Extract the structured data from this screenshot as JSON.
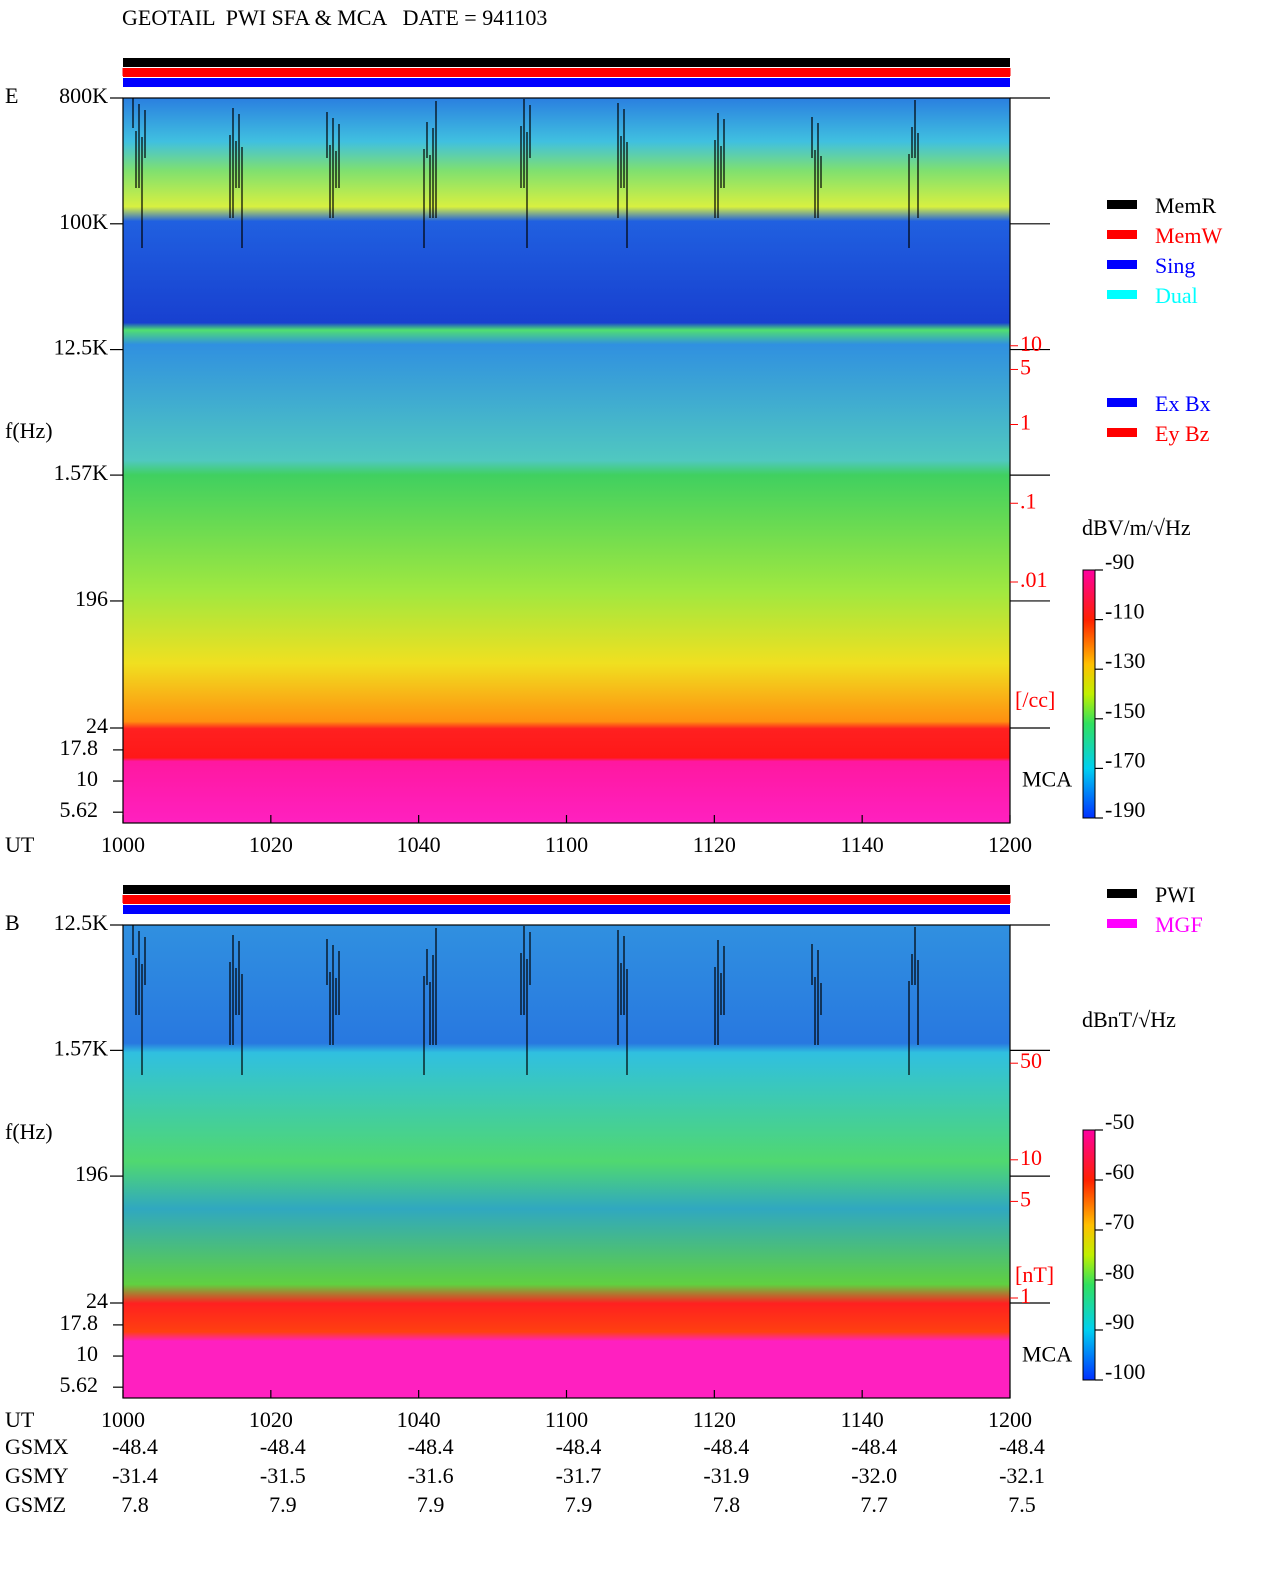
{
  "title": "GEOTAIL  PWI SFA & MCA   DATE = 941103",
  "chart_data": [
    {
      "type": "spectrogram",
      "panel_label": "E",
      "y_label": "f(Hz)",
      "x_label": "UT",
      "xlim": [
        0,
        120
      ],
      "xticks": [
        {
          "value": 0,
          "label": "1000"
        },
        {
          "value": 20,
          "label": "1020"
        },
        {
          "value": 40,
          "label": "1040"
        },
        {
          "value": 60,
          "label": "1100"
        },
        {
          "value": 80,
          "label": "1120"
        },
        {
          "value": 100,
          "label": "1140"
        },
        {
          "value": 120,
          "label": "1200"
        }
      ],
      "log_y": true,
      "ylim": [
        24,
        800000
      ],
      "yticks": [
        {
          "value": 800000,
          "label": "800K"
        },
        {
          "value": 100000,
          "label": "100K"
        },
        {
          "value": 12500,
          "label": "12.5K"
        },
        {
          "value": 1570,
          "label": "1.57K"
        },
        196,
        24
      ],
      "mca_label": "MCA",
      "mca_ylim": [
        4.6,
        26.7
      ],
      "mca_yticks": [
        17.8,
        10,
        5.62
      ],
      "y2_label": "[/cc]",
      "y2_color": "#ff0000",
      "y2lim": [
        0.00014,
        14000
      ],
      "y2ticks": [
        10,
        5,
        1,
        {
          "value": 0.1,
          "label": ".1"
        },
        {
          "value": 0.01,
          "label": ".01"
        }
      ],
      "colorbar": {
        "label": "dBV/m/√Hz",
        "lim": [
          -190,
          -90
        ],
        "ticks": [
          -90,
          -110,
          -130,
          -150,
          -170,
          -190
        ]
      },
      "legend": [
        {
          "name": "MemR",
          "color": "#000000"
        },
        {
          "name": "MemW",
          "color": "#ff0000"
        },
        {
          "name": "Sing",
          "color": "#0000ff"
        },
        {
          "name": "Dual",
          "color": "#00ffff"
        }
      ],
      "legend2": [
        {
          "name": "Ex Bx",
          "color": "#0000ff"
        },
        {
          "name": "Ey Bz",
          "color": "#ff0000"
        }
      ]
    },
    {
      "type": "spectrogram",
      "panel_label": "B",
      "y_label": "f(Hz)",
      "x_label": "UT",
      "xlim": [
        0,
        120
      ],
      "xticks": [
        {
          "value": 0,
          "label": "1000"
        },
        {
          "value": 20,
          "label": "1020"
        },
        {
          "value": 40,
          "label": "1040"
        },
        {
          "value": 60,
          "label": "1100"
        },
        {
          "value": 80,
          "label": "1120"
        },
        {
          "value": 100,
          "label": "1140"
        },
        {
          "value": 120,
          "label": "1200"
        }
      ],
      "log_y": true,
      "ylim": [
        24,
        12500
      ],
      "yticks": [
        {
          "value": 12500,
          "label": "12.5K"
        },
        {
          "value": 1570,
          "label": "1.57K"
        },
        196,
        24
      ],
      "mca_label": "MCA",
      "mca_ylim": [
        4.6,
        26.7
      ],
      "mca_yticks": [
        17.8,
        10,
        5.62
      ],
      "y2_label": "[nT]",
      "y2_color": "#ff0000",
      "y2lim": [
        0.92,
        500
      ],
      "y2ticks": [
        50,
        10,
        5,
        1
      ],
      "colorbar": {
        "label": "dBnT/√Hz",
        "lim": [
          -100,
          -50
        ],
        "ticks": [
          -50,
          -60,
          -70,
          -80,
          -90,
          -100
        ]
      },
      "legend": [
        {
          "name": "PWI",
          "color": "#000000"
        },
        {
          "name": "MGF",
          "color": "#ff00ff"
        }
      ]
    }
  ],
  "orbit": {
    "rows": [
      {
        "label": "GSMX",
        "values": [
          "-48.4",
          "-48.4",
          "-48.4",
          "-48.4",
          "-48.4",
          "-48.4",
          "-48.4"
        ]
      },
      {
        "label": "GSMY",
        "values": [
          "-31.4",
          "-31.5",
          "-31.6",
          "-31.7",
          "-31.9",
          "-32.0",
          "-32.1"
        ]
      },
      {
        "label": "GSMZ",
        "values": [
          "7.8",
          "7.9",
          "7.9",
          "7.9",
          "7.8",
          "7.7",
          "7.5"
        ]
      }
    ]
  }
}
